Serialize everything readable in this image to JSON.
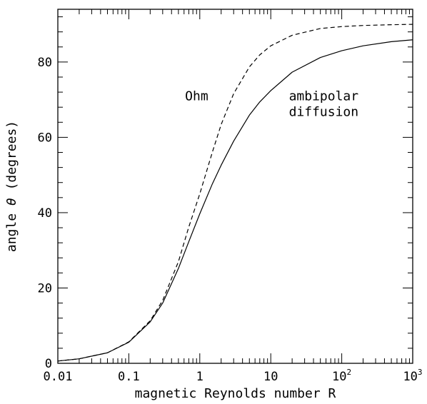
{
  "chart_data": {
    "type": "line",
    "xlabel": "magnetic Reynolds number R",
    "ylabel_prefix": "angle ",
    "ylabel_symbol": "θ",
    "ylabel_suffix": " (degrees)",
    "x_scale": "log",
    "xlim": [
      0.01,
      1000
    ],
    "ylim": [
      0,
      94
    ],
    "x_ticks": [
      {
        "value": 0.01,
        "base": "0.01",
        "sup": ""
      },
      {
        "value": 0.1,
        "base": "0.1",
        "sup": ""
      },
      {
        "value": 1,
        "base": "1",
        "sup": ""
      },
      {
        "value": 10,
        "base": "10",
        "sup": ""
      },
      {
        "value": 100,
        "base": "10",
        "sup": "2"
      },
      {
        "value": 1000,
        "base": "10",
        "sup": "3"
      }
    ],
    "y_ticks": [
      {
        "value": 0,
        "label": "0"
      },
      {
        "value": 20,
        "label": "20"
      },
      {
        "value": 40,
        "label": "40"
      },
      {
        "value": 60,
        "label": "60"
      },
      {
        "value": 80,
        "label": "80"
      }
    ],
    "y_minor_step": 4,
    "series": [
      {
        "name": "Ohm",
        "style": "dashed",
        "x": [
          0.01,
          0.02,
          0.05,
          0.1,
          0.2,
          0.3,
          0.5,
          0.7,
          1,
          1.5,
          2,
          3,
          5,
          7,
          10,
          20,
          50,
          100,
          200,
          500,
          1000
        ],
        "y": [
          0.6,
          1.2,
          2.8,
          5.7,
          11.3,
          16.7,
          27.0,
          36.2,
          45.0,
          56.0,
          63.4,
          71.6,
          78.7,
          81.9,
          84.3,
          87.1,
          88.9,
          89.4,
          89.7,
          89.9,
          90.0
        ]
      },
      {
        "name": "ambipolar diffusion",
        "style": "solid",
        "x": [
          0.01,
          0.02,
          0.05,
          0.1,
          0.2,
          0.3,
          0.5,
          0.7,
          1,
          1.5,
          2,
          3,
          5,
          7,
          10,
          20,
          50,
          100,
          200,
          500,
          1000
        ],
        "y": [
          0.6,
          1.2,
          2.8,
          5.6,
          11.0,
          16.0,
          25.2,
          32.3,
          39.7,
          47.6,
          52.6,
          59.0,
          65.9,
          69.4,
          72.4,
          77.3,
          81.2,
          83.0,
          84.3,
          85.4,
          85.9
        ]
      }
    ],
    "annotations": [
      {
        "id": "ohm",
        "lines": [
          "Ohm"
        ],
        "x": 0.62,
        "y": 71
      },
      {
        "id": "ambipolar",
        "lines": [
          "ambipolar",
          "diffusion"
        ],
        "x": 18,
        "y": 71
      }
    ]
  }
}
